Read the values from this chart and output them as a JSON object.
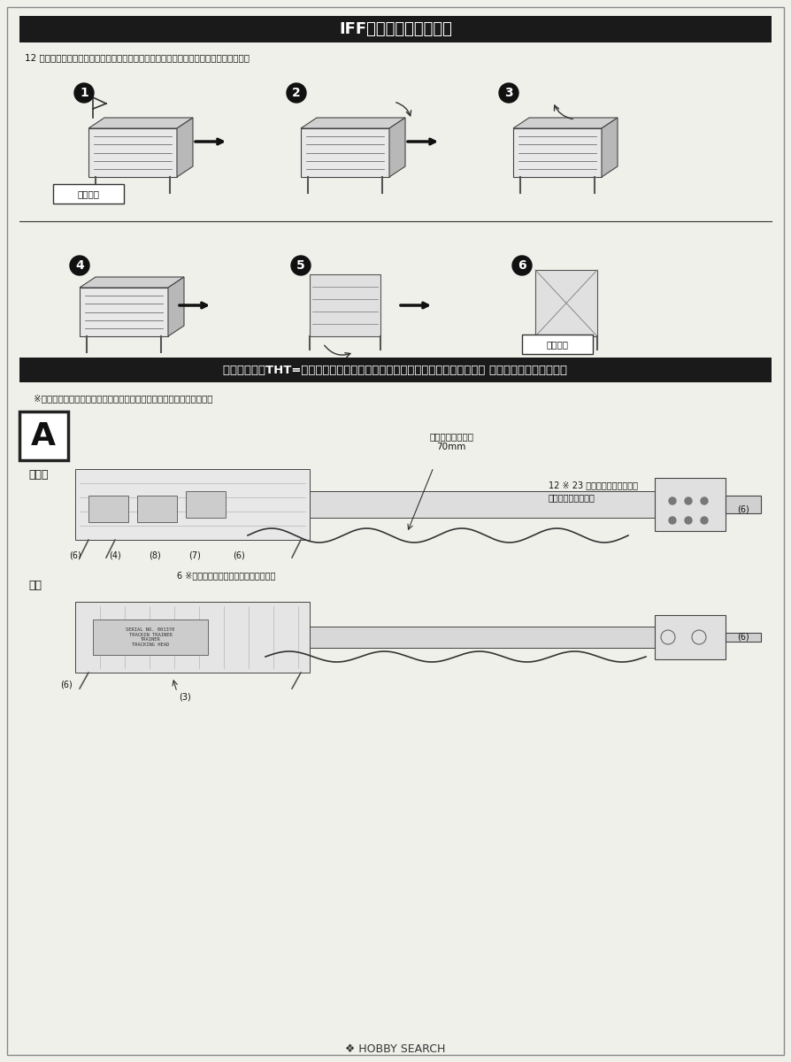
{
  "bg_color": "#f5f5f0",
  "page_bg": "#f0f0eb",
  "section1_title": "IFFアンテナの格納手順",
  "section1_subtitle": "12 でパーツを非接着とした場合、以下のような手順で収納状態とすることができます。",
  "section2_title": "スティンガーTHT=トラッキングヘッドトレーナー（ロックオン訓練仕様）／ デカールの貼り付け位置",
  "section2_note": "※番号が書いていないデカールについては、お好みでご使用ください。",
  "label_tenkaiState": "展開状態",
  "label_shunouState": "収納状態",
  "label_hidari": "左側面",
  "label_ue": "上面",
  "vinyl_tube_label": "ビニールチューブ\n70mm",
  "note_12_23": "12 ※ 23 を参考に、組み立てる\n前に貼り付けます。",
  "note_6_reverse": "6 ※反対側も同じように貼り付けます。",
  "title_bar_color": "#1a1a1a",
  "title_text_color": "#ffffff",
  "section2_bar_color": "#1a1a1a",
  "section2_text_color": "#ffffff",
  "divider_color": "#333333",
  "text_color": "#111111",
  "step_circle_color": "#111111",
  "step_text_color": "#ffffff",
  "arrow_color": "#111111",
  "font_size_title": 13,
  "font_size_section2_title": 9.5,
  "font_size_body": 8,
  "font_size_step": 11,
  "hobby_search_text": "❖ HOBBY SEARCH",
  "hobby_search_color": "#333333"
}
